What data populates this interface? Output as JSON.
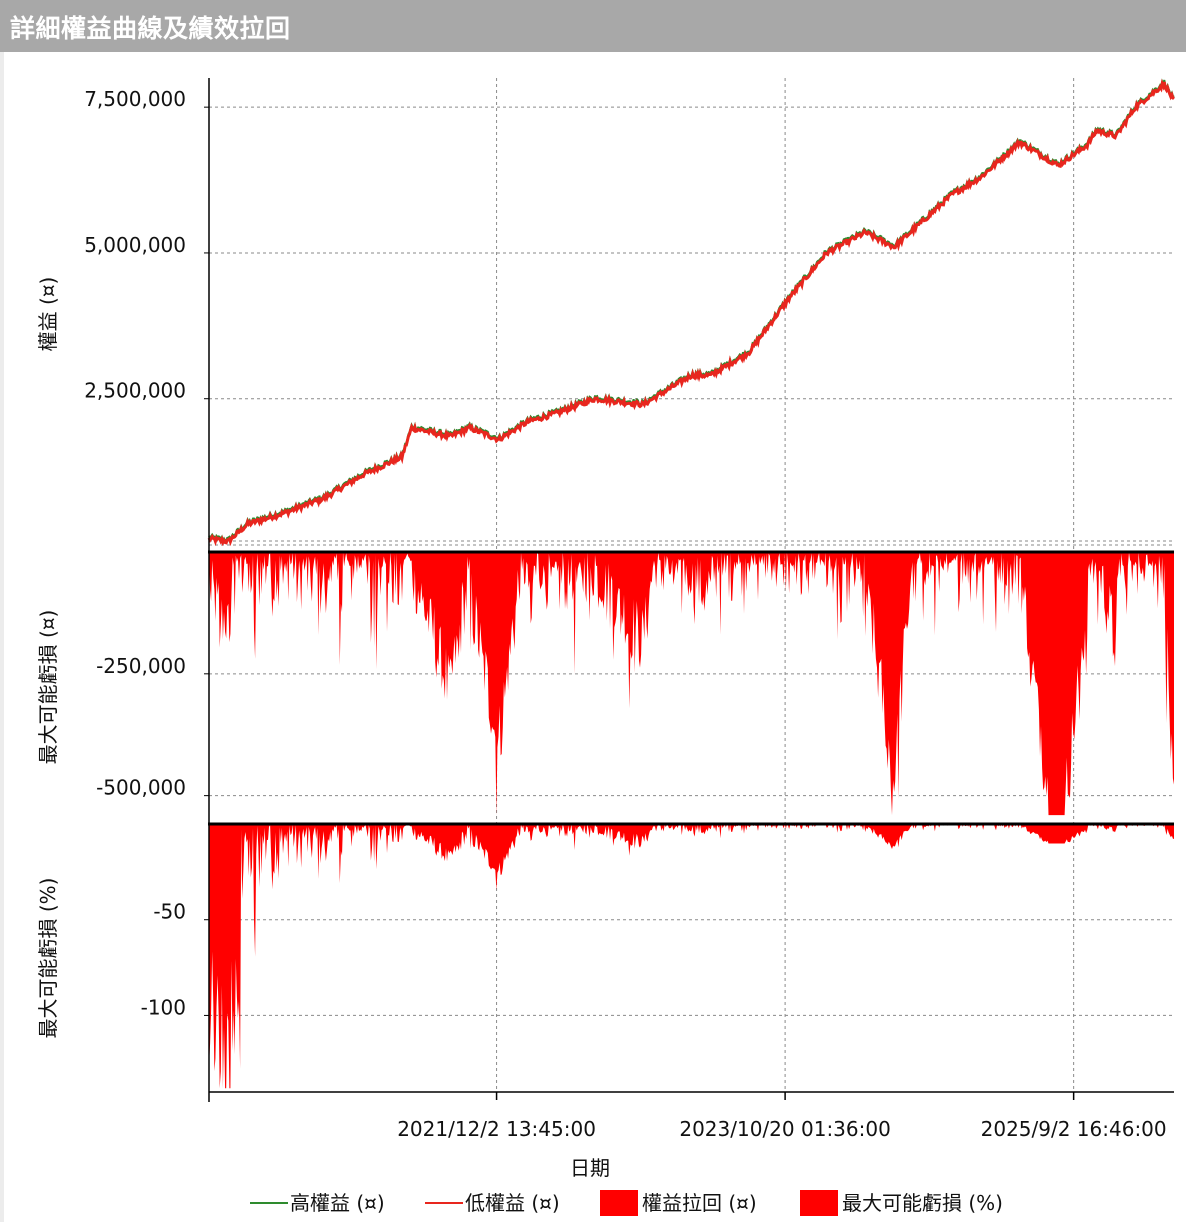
{
  "window": {
    "title": "詳細權益曲線及績效拉回"
  },
  "colors": {
    "high_equity": "#2e8b2e",
    "low_equity": "#e8261e",
    "fill_red": "#ff0000",
    "grid": "#8a8a8a"
  },
  "chart_data": [
    {
      "type": "line",
      "ylabel": "權益 (¤)",
      "ylim": [
        -60000,
        8000000
      ],
      "yticks": [
        2500000,
        5000000,
        7500000
      ],
      "ytick_labels": [
        "2,500,000",
        "5,000,000",
        "7,500,000"
      ],
      "series": [
        {
          "name": "高權益 (¤)",
          "color": "#2e8b2e"
        },
        {
          "name": "低權益 (¤)",
          "color": "#e8261e"
        }
      ],
      "x_fraction": [
        0,
        0.02,
        0.04,
        0.08,
        0.12,
        0.16,
        0.2,
        0.21,
        0.25,
        0.27,
        0.3,
        0.33,
        0.36,
        0.4,
        0.45,
        0.5,
        0.52,
        0.56,
        0.6,
        0.64,
        0.68,
        0.71,
        0.72,
        0.77,
        0.8,
        0.84,
        0.88,
        0.91,
        0.92,
        0.94,
        0.96,
        0.99,
        1.0
      ],
      "y_values": [
        100000,
        50000,
        350000,
        550000,
        800000,
        1200000,
        1500000,
        2000000,
        1850000,
        2000000,
        1800000,
        2100000,
        2250000,
        2500000,
        2400000,
        2900000,
        2900000,
        3300000,
        4200000,
        5000000,
        5350000,
        5100000,
        5250000,
        6000000,
        6300000,
        6900000,
        6500000,
        6850000,
        7100000,
        7000000,
        7500000,
        7900000,
        7600000
      ]
    },
    {
      "type": "area",
      "ylabel": "最大可能虧損 (¤)",
      "ylim": [
        -550000,
        0
      ],
      "yticks": [
        -250000,
        -500000
      ],
      "ytick_labels": [
        "-250,000",
        "-500,000"
      ],
      "series": [
        {
          "name": "權益拉回 (¤)"
        }
      ]
    },
    {
      "type": "area",
      "ylabel": "最大可能虧損 (%)",
      "ylim": [
        -140,
        0
      ],
      "yticks": [
        -50,
        -100
      ],
      "ytick_labels": [
        "-50",
        "-100"
      ],
      "series": [
        {
          "name": "最大可能虧損 (%)"
        }
      ]
    }
  ],
  "x_axis": {
    "xlabel": "日期",
    "ticks": [
      "2021/12/2 13:45:00",
      "2023/10/20 01:36:00",
      "2025/9/2 16:46:00"
    ]
  },
  "legend": [
    {
      "label": "高權益 (¤)",
      "kind": "line",
      "color": "#2e8b2e"
    },
    {
      "label": "低權益 (¤)",
      "kind": "line",
      "color": "#e8261e"
    },
    {
      "label": "權益拉回 (¤)",
      "kind": "box",
      "color": "#ff0000"
    },
    {
      "label": "最大可能虧損 (%)",
      "kind": "box",
      "color": "#ff0000"
    }
  ]
}
